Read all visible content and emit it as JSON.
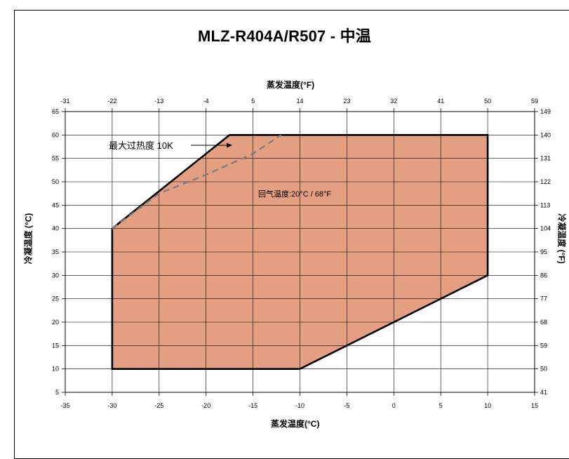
{
  "chart_data": {
    "type": "area",
    "title": "MLZ-R404A/R507 - 中温",
    "xlabel": "蒸发温度(°C)",
    "ylabel": "冷凝温度 (°C)",
    "x2label": "蒸发温度(°F)",
    "y2label": "冷凝温度 (°F)",
    "xlim": [
      -35,
      15
    ],
    "ylim": [
      5,
      65
    ],
    "x_ticks": [
      -35,
      -30,
      -25,
      -20,
      -15,
      -10,
      -5,
      0,
      5,
      10,
      15
    ],
    "y_ticks": [
      5,
      10,
      15,
      20,
      25,
      30,
      35,
      40,
      45,
      50,
      55,
      60,
      65
    ],
    "x_ticks_f": [
      "-31",
      "-22",
      "-13",
      "-4",
      "5",
      "14",
      "23",
      "32",
      "41",
      "50",
      "59"
    ],
    "y_ticks_f": [
      "41",
      "50",
      "59",
      "68",
      "77",
      "86",
      "95",
      "104",
      "113",
      "122",
      "131",
      "140",
      "149"
    ],
    "grid": true,
    "envelope": {
      "name": "回气温度:20°C / 68°F",
      "color": "#e49e82",
      "edge_color": "#000000",
      "points": [
        [
          -30,
          10
        ],
        [
          -10,
          10
        ],
        [
          10,
          30
        ],
        [
          10,
          60
        ],
        [
          -17.5,
          60
        ],
        [
          -30,
          40
        ]
      ]
    },
    "superheat_line": {
      "name": "最大过热度 10K",
      "color": "#7f7f7f",
      "style": "dashed",
      "points": [
        [
          -30,
          40
        ],
        [
          -25,
          47.5
        ],
        [
          -20,
          51.5
        ],
        [
          -15,
          56
        ],
        [
          -12,
          60
        ]
      ]
    }
  }
}
